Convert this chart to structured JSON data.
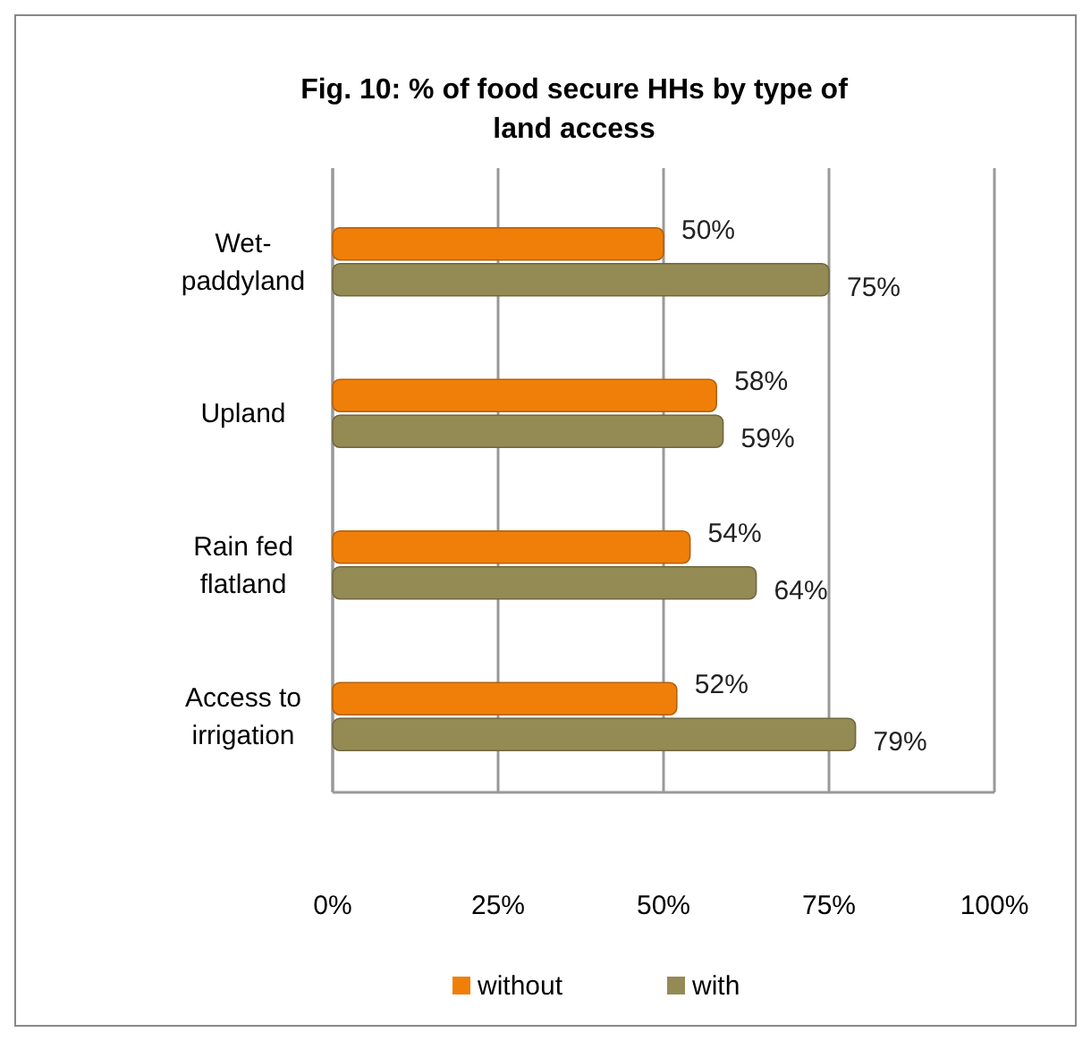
{
  "chart_data": {
    "type": "bar",
    "orientation": "horizontal",
    "title": "Fig. 10: % of food secure HHs by type of land access",
    "categories": [
      "Wet-paddyland",
      "Upland",
      "Rain fed flatland",
      "Access to irrigation"
    ],
    "series": [
      {
        "name": "without",
        "color": "#f07f09",
        "values": [
          50,
          58,
          54,
          52
        ],
        "value_labels": [
          "50%",
          "58%",
          "54%",
          "52%"
        ]
      },
      {
        "name": "with",
        "color": "#948a54",
        "values": [
          75,
          59,
          64,
          79
        ],
        "value_labels": [
          "75%",
          "59%",
          "64%",
          "79%"
        ]
      }
    ],
    "xlim": [
      0,
      100
    ],
    "xticks": [
      {
        "value": 0,
        "label": "0%"
      },
      {
        "value": 25,
        "label": "25%"
      },
      {
        "value": 50,
        "label": "50%"
      },
      {
        "value": 75,
        "label": "75%"
      },
      {
        "value": 100,
        "label": "100%"
      }
    ],
    "grid": "x",
    "legend": "bottom"
  }
}
